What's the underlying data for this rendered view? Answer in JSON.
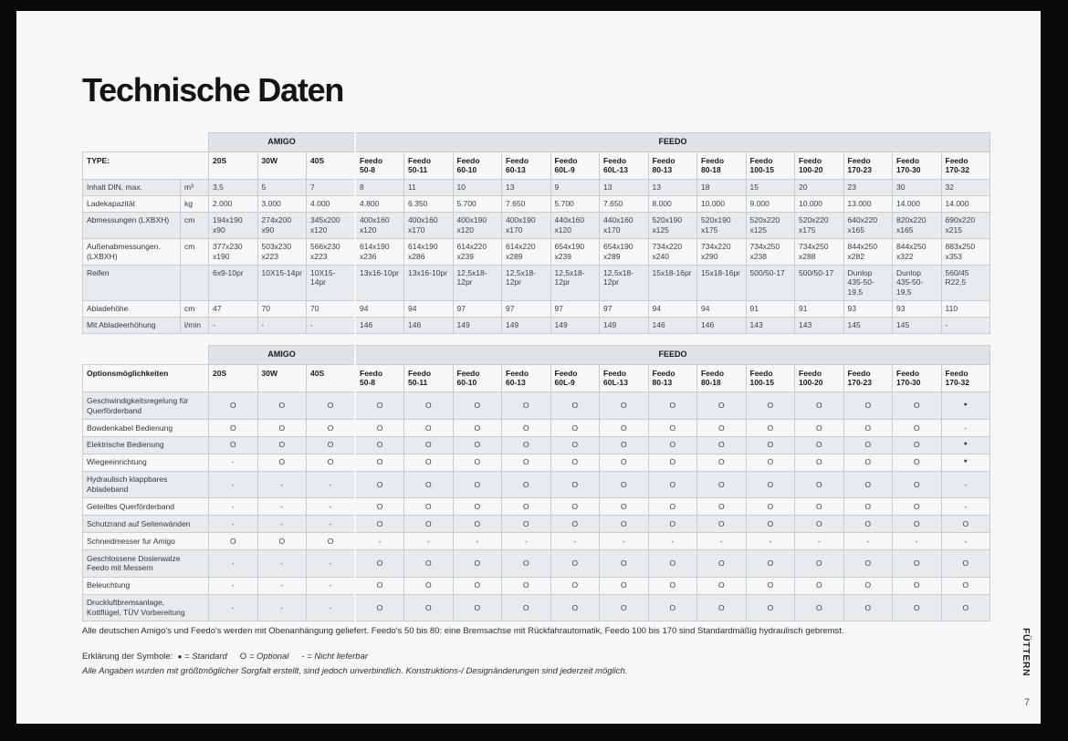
{
  "page": {
    "title": "Technische Daten",
    "side_label": "FÜTTERN",
    "page_number": "7"
  },
  "columns": {
    "group_amigo": "AMIGO",
    "group_feedo": "FEEDO",
    "models": [
      "20S",
      "30W",
      "40S",
      "Feedo\n50-8",
      "Feedo\n50-11",
      "Feedo\n60-10",
      "Feedo\n60-13",
      "Feedo\n60L-9",
      "Feedo\n60L-13",
      "Feedo\n80-13",
      "Feedo\n80-18",
      "Feedo\n100-15",
      "Feedo\n100-20",
      "Feedo\n170-23",
      "Feedo\n170-30",
      "Feedo\n170-32"
    ]
  },
  "spec_table": {
    "header_label": "TYPE:",
    "rows": [
      {
        "label": "Inhalt DIN, max.",
        "unit": "m³",
        "values": [
          "3,5",
          "5",
          "7",
          "8",
          "11",
          "10",
          "13",
          "9",
          "13",
          "13",
          "18",
          "15",
          "20",
          "23",
          "30",
          "32"
        ]
      },
      {
        "label": "Ladekapazität",
        "unit": "kg",
        "values": [
          "2.000",
          "3.000",
          "4.000",
          "4.800",
          "6.350",
          "5.700",
          "7.650",
          "5.700",
          "7.650",
          "8.000",
          "10.000",
          "9.000",
          "10.000",
          "13.000",
          "14.000",
          "14.000"
        ]
      },
      {
        "label": "Abmessungen (LXBXH)",
        "unit": "cm",
        "values": [
          "194x190\nx90",
          "274x200\nx90",
          "345x200\nx120",
          "400x160\nx120",
          "400x160\nx170",
          "400x190\nx120",
          "400x190\nx170",
          "440x160\nx120",
          "440x160\nx170",
          "520x190\nx125",
          "520x190\nx175",
          "520x220\nx125",
          "520x220\nx175",
          "640x220\nx165",
          "820x220\nx165",
          "690x220\nx215"
        ]
      },
      {
        "label": "Außenabmessungen.\n(LXBXH)",
        "unit": "cm",
        "values": [
          "377x230\nx190",
          "503x230\nx223",
          "566x230\nx223",
          "614x190\nx236",
          "614x190\nx286",
          "614x220\nx239",
          "614x220\nx289",
          "654x190\nx239",
          "654x190\nx289",
          "734x220\nx240",
          "734x220\nx290",
          "734x250\nx238",
          "734x250\nx288",
          "844x250\nx282",
          "844x250\nx322",
          "883x250\nx353"
        ]
      },
      {
        "label": "Reifen",
        "unit": "",
        "tall": true,
        "values": [
          "6x9-10pr",
          "10X15-14pr",
          "10X15-14pr",
          "13x16-10pr",
          "13x16-10pr",
          "12,5x18-\n12pr",
          "12,5x18-\n12pr",
          "12,5x18-\n12pr",
          "12,5x18-\n12pr",
          "15x18-16pr",
          "15x18-16pr",
          "500/50-17",
          "500/50-17",
          "Dunlop\n435-50-\n19,5",
          "Dunlop\n435-50-\n19,5",
          "560/45\nR22,5"
        ]
      },
      {
        "label": "Abladehöhe",
        "unit": "cm",
        "values": [
          "47",
          "70",
          "70",
          "94",
          "94",
          "97",
          "97",
          "97",
          "97",
          "94",
          "94",
          "91",
          "91",
          "93",
          "93",
          "110"
        ]
      },
      {
        "label": "Mit Abladeerhöhung",
        "unit": "l/min",
        "values": [
          "-",
          "-",
          "-",
          "146",
          "146",
          "149",
          "149",
          "149",
          "149",
          "146",
          "146",
          "143",
          "143",
          "145",
          "145",
          "-"
        ]
      }
    ]
  },
  "options_table": {
    "header_label": "Optionsmöglichkeiten",
    "rows": [
      {
        "label": "Geschwindigkeitsregelung für\nQuerförderband",
        "values": [
          "O",
          "O",
          "O",
          "O",
          "O",
          "O",
          "O",
          "O",
          "O",
          "O",
          "O",
          "O",
          "O",
          "O",
          "O",
          "●"
        ]
      },
      {
        "label": "Bowdenkabel Bedienung",
        "values": [
          "O",
          "O",
          "O",
          "O",
          "O",
          "O",
          "O",
          "O",
          "O",
          "O",
          "O",
          "O",
          "O",
          "O",
          "O",
          "-"
        ]
      },
      {
        "label": "Elektrische Bedienung",
        "values": [
          "O",
          "O",
          "O",
          "O",
          "O",
          "O",
          "O",
          "O",
          "O",
          "O",
          "O",
          "O",
          "O",
          "O",
          "O",
          "●"
        ]
      },
      {
        "label": "Wiegeeinrichtung",
        "values": [
          "-",
          "O",
          "O",
          "O",
          "O",
          "O",
          "O",
          "O",
          "O",
          "O",
          "O",
          "O",
          "O",
          "O",
          "O",
          "●"
        ]
      },
      {
        "label": "Hydraulisch klappbares\nAbladeband",
        "values": [
          "-",
          "-",
          "-",
          "O",
          "O",
          "O",
          "O",
          "O",
          "O",
          "O",
          "O",
          "O",
          "O",
          "O",
          "O",
          "-"
        ]
      },
      {
        "label": "Geteiltes Querförderband",
        "values": [
          "-",
          "-",
          "-",
          "O",
          "O",
          "O",
          "O",
          "O",
          "O",
          "O",
          "O",
          "O",
          "O",
          "O",
          "O",
          "-"
        ]
      },
      {
        "label": "Schutzrand auf Seitenwänden",
        "values": [
          "-",
          "-",
          "-",
          "O",
          "O",
          "O",
          "O",
          "O",
          "O",
          "O",
          "O",
          "O",
          "O",
          "O",
          "O",
          "O"
        ]
      },
      {
        "label": "Schneidmesser fur Amigo",
        "values": [
          "O",
          "O",
          "O",
          "-",
          "-",
          "-",
          "-",
          "-",
          "-",
          "-",
          "-",
          "-",
          "-",
          "-",
          "-",
          "-"
        ]
      },
      {
        "label": "Geschlossene Dosierwalze\nFeedo mit Messern",
        "values": [
          "-",
          "-",
          "-",
          "O",
          "O",
          "O",
          "O",
          "O",
          "O",
          "O",
          "O",
          "O",
          "O",
          "O",
          "O",
          "O"
        ]
      },
      {
        "label": "Beleuchtung",
        "values": [
          "-",
          "-",
          "-",
          "O",
          "O",
          "O",
          "O",
          "O",
          "O",
          "O",
          "O",
          "O",
          "O",
          "O",
          "O",
          "O"
        ]
      },
      {
        "label": "Druckluftbremsanlage,\nKottflügel, TÜV Vorbereitung",
        "values": [
          "-",
          "-",
          "-",
          "O",
          "O",
          "O",
          "O",
          "O",
          "O",
          "O",
          "O",
          "O",
          "O",
          "O",
          "O",
          "O"
        ]
      }
    ]
  },
  "footer": {
    "note": "Alle deutschen Amigo's und Feedo's werden mit Obenanhängung geliefert. Feedo's 50 bis 80: eine Bremsachse mit Rückfahrautomatik, Feedo 100 bis 170 sind Standardmäßig hydraulisch gebremst.",
    "disclaimer": "Alle Angaben wurden mit größtmöglicher Sorgfalt erstellt, sind jedoch unverbindlich. Konstruktions-/ Designänderungen sind jederzeit möglich."
  },
  "legend": {
    "label": "Erklärung der Symbole:",
    "items": [
      {
        "symbol": "●",
        "meaning": "= Standard"
      },
      {
        "symbol": "O",
        "meaning": "= Optional"
      },
      {
        "symbol": "-",
        "meaning": "= Nicht lieferbar"
      }
    ]
  }
}
